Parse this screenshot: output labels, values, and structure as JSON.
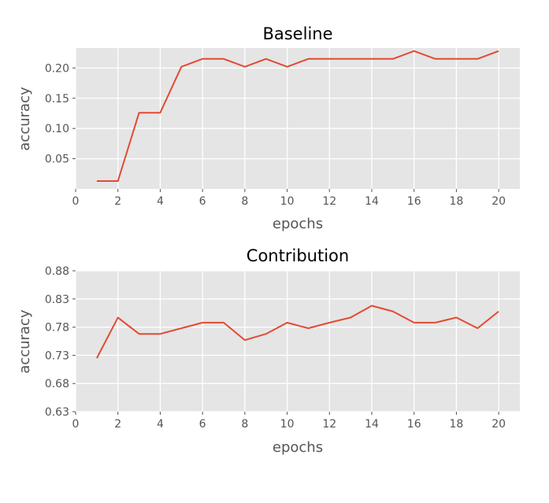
{
  "chart_data": [
    {
      "type": "line",
      "title": "Baseline",
      "xlabel": "epochs",
      "ylabel": "accuracy",
      "xlim": [
        0,
        21
      ],
      "ylim": [
        0.0,
        0.233
      ],
      "xticks": [
        0,
        2,
        4,
        6,
        8,
        10,
        12,
        14,
        16,
        18,
        20
      ],
      "yticks": [
        0.05,
        0.1,
        0.15,
        0.2
      ],
      "ytick_labels": [
        "0.05",
        "0.10",
        "0.15",
        "0.20"
      ],
      "grid": true,
      "background": "#e5e5e5",
      "series": [
        {
          "color": "#e24a33",
          "x": [
            1,
            2,
            3,
            4,
            5,
            6,
            7,
            8,
            9,
            10,
            11,
            12,
            13,
            14,
            15,
            16,
            17,
            18,
            19,
            20
          ],
          "y": [
            0.013,
            0.013,
            0.126,
            0.126,
            0.202,
            0.215,
            0.215,
            0.202,
            0.215,
            0.202,
            0.215,
            0.215,
            0.215,
            0.215,
            0.215,
            0.228,
            0.215,
            0.215,
            0.215,
            0.228
          ]
        }
      ]
    },
    {
      "type": "line",
      "title": "Contribution",
      "xlabel": "epochs",
      "ylabel": "accuracy",
      "xlim": [
        0,
        21
      ],
      "ylim": [
        0.63,
        0.88
      ],
      "xticks": [
        0,
        2,
        4,
        6,
        8,
        10,
        12,
        14,
        16,
        18,
        20
      ],
      "yticks": [
        0.63,
        0.68,
        0.73,
        0.78,
        0.83,
        0.88
      ],
      "ytick_labels": [
        "0.63",
        "0.68",
        "0.73",
        "0.78",
        "0.83",
        "0.88"
      ],
      "grid": true,
      "background": "#e5e5e5",
      "series": [
        {
          "color": "#e24a33",
          "x": [
            1,
            2,
            3,
            4,
            5,
            6,
            7,
            8,
            9,
            10,
            11,
            12,
            13,
            14,
            15,
            16,
            17,
            18,
            19,
            20
          ],
          "y": [
            0.725,
            0.797,
            0.768,
            0.768,
            0.778,
            0.788,
            0.788,
            0.757,
            0.768,
            0.788,
            0.778,
            0.788,
            0.797,
            0.818,
            0.808,
            0.788,
            0.788,
            0.797,
            0.778,
            0.808
          ]
        }
      ]
    }
  ]
}
